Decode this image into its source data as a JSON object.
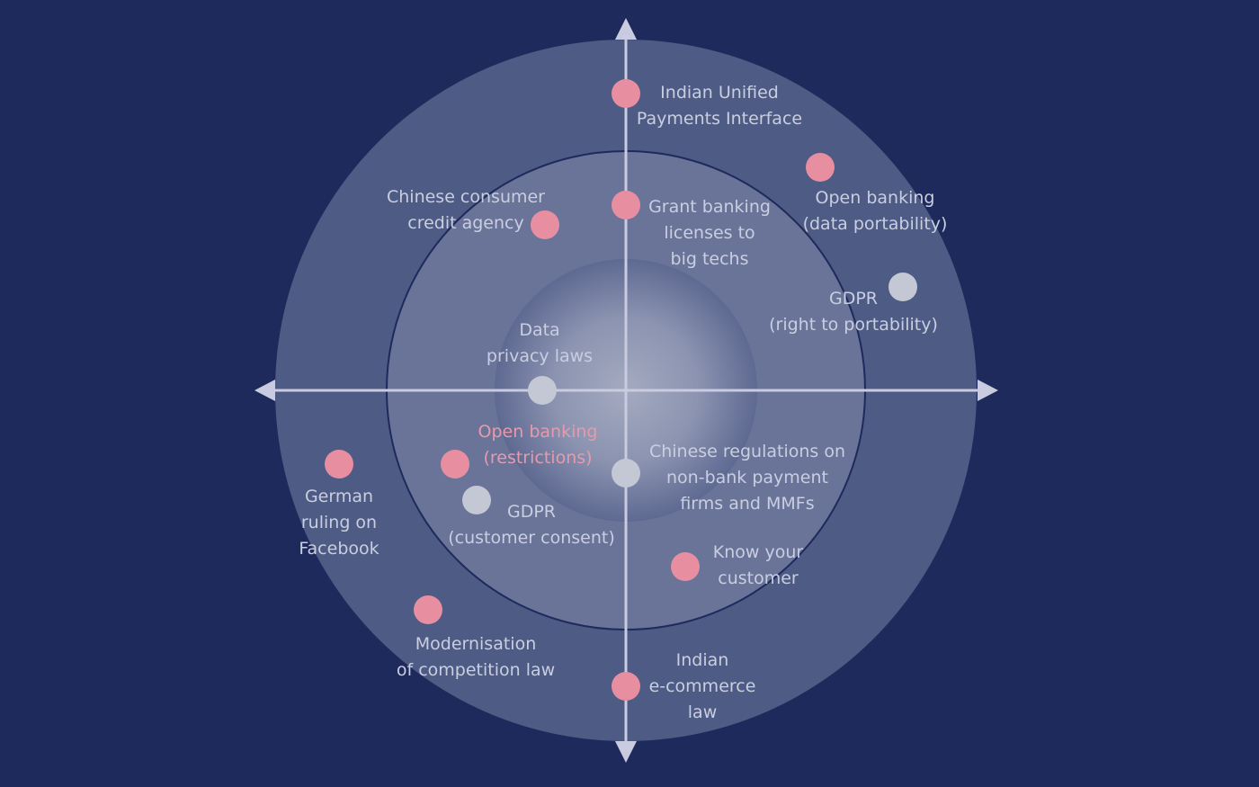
{
  "colors": {
    "background": "#1e2a5c",
    "pink_dot": "#e78fa1",
    "grey_dot": "#c4c8d4",
    "axis": "#c9cce0",
    "label": "#c9cee0",
    "label_highlight": "#e79aab"
  },
  "items": [
    {
      "id": "indian-upi",
      "lines": [
        "Indian Unified",
        "Payments Interface"
      ],
      "dot": "pink"
    },
    {
      "id": "open-banking-portability",
      "lines": [
        "Open banking",
        "(data portability)"
      ],
      "dot": "pink"
    },
    {
      "id": "chinese-credit-agency",
      "lines": [
        "Chinese consumer",
        "credit agency"
      ],
      "dot": "pink"
    },
    {
      "id": "grant-banking-licenses",
      "lines": [
        "Grant banking",
        "licenses to",
        "big techs"
      ],
      "dot": "pink"
    },
    {
      "id": "gdpr-portability",
      "lines": [
        "GDPR",
        "(right to portability)"
      ],
      "dot": "grey"
    },
    {
      "id": "data-privacy-laws",
      "lines": [
        "Data",
        "privacy laws"
      ],
      "dot": "grey"
    },
    {
      "id": "open-banking-restrictions",
      "lines": [
        "Open banking",
        "(restrictions)"
      ],
      "dot": "pink",
      "highlight": true
    },
    {
      "id": "chinese-regulations",
      "lines": [
        "Chinese regulations on",
        "non-bank payment",
        "firms and MMFs"
      ],
      "dot": "grey"
    },
    {
      "id": "german-ruling",
      "lines": [
        "German",
        "ruling on",
        "Facebook"
      ],
      "dot": "pink"
    },
    {
      "id": "gdpr-consent",
      "lines": [
        "GDPR",
        "(customer consent)"
      ],
      "dot": "grey"
    },
    {
      "id": "know-your-customer",
      "lines": [
        "Know your",
        "customer"
      ],
      "dot": "pink"
    },
    {
      "id": "modernisation-competition",
      "lines": [
        "Modernisation",
        "of competition law"
      ],
      "dot": "pink"
    },
    {
      "id": "indian-ecommerce",
      "lines": [
        "Indian",
        "e-commerce",
        "law"
      ],
      "dot": "pink"
    }
  ]
}
